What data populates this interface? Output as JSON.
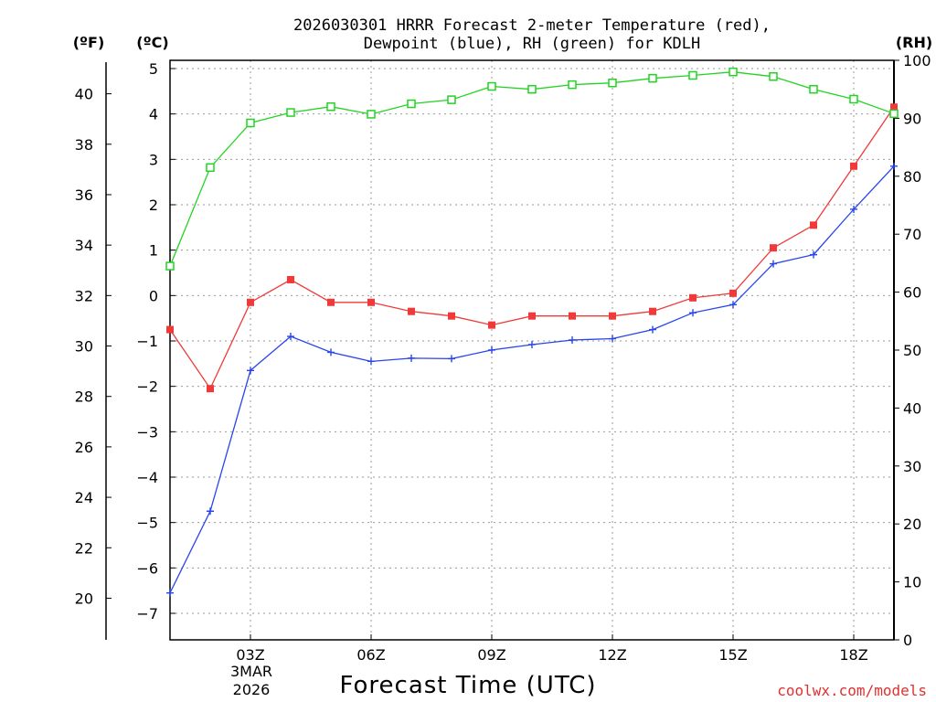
{
  "chart_data": {
    "type": "line",
    "title": [
      "2026030301 HRRR Forecast 2-meter Temperature (red),",
      "Dewpoint (blue), RH (green) for KDLH"
    ],
    "xlabel": "Forecast Time (UTC)",
    "date_label": [
      "3MAR",
      "2026"
    ],
    "credit": "coolwx.com/models",
    "units": {
      "fahrenheit": "(ºF)",
      "celsius": "(ºC)",
      "rh": "(RH)"
    },
    "x_hours": [
      1,
      2,
      3,
      4,
      5,
      6,
      7,
      8,
      9,
      10,
      11,
      12,
      13,
      14,
      15,
      16,
      17,
      18,
      19
    ],
    "x_range": [
      1,
      19
    ],
    "x_ticks": [
      {
        "hour": 3,
        "label": "03Z"
      },
      {
        "hour": 6,
        "label": "06Z"
      },
      {
        "hour": 9,
        "label": "09Z"
      },
      {
        "hour": 12,
        "label": "12Z"
      },
      {
        "hour": 15,
        "label": "15Z"
      },
      {
        "hour": 18,
        "label": "18Z"
      }
    ],
    "celsius_range": [
      -7.5,
      5.2
    ],
    "celsius_ticks": [
      "5",
      "4",
      "3",
      "2",
      "1",
      "0",
      "−1",
      "−2",
      "−3",
      "−4",
      "−5",
      "−6",
      "−7"
    ],
    "fahrenheit_ticks": [
      "40",
      "38",
      "36",
      "34",
      "32",
      "30",
      "28",
      "26",
      "24",
      "22",
      "20"
    ],
    "rh_range": [
      0,
      100
    ],
    "rh_ticks": [
      "100",
      "90",
      "80",
      "70",
      "60",
      "50",
      "40",
      "30",
      "20",
      "10",
      "0"
    ],
    "series": [
      {
        "name": "Temperature",
        "axis": "celsius",
        "color": "#f03a3a",
        "marker": "filled-square",
        "values": [
          -0.75,
          -2.05,
          -0.15,
          0.35,
          -0.15,
          -0.15,
          -0.35,
          -0.45,
          -0.65,
          -0.45,
          -0.45,
          -0.45,
          -0.35,
          -0.05,
          0.05,
          1.05,
          1.55,
          2.85,
          4.15
        ]
      },
      {
        "name": "Dewpoint",
        "axis": "celsius",
        "color": "#2844ee",
        "marker": "plus",
        "values": [
          -6.55,
          -4.75,
          -1.65,
          -0.9,
          -1.25,
          -1.45,
          -1.38,
          -1.39,
          -1.2,
          -1.08,
          -0.98,
          -0.95,
          -0.75,
          -0.38,
          -0.2,
          0.7,
          0.9,
          1.9,
          2.85
        ]
      },
      {
        "name": "RH",
        "axis": "rh",
        "color": "#22d422",
        "marker": "open-square",
        "values": [
          64.5,
          81.5,
          89.2,
          91.0,
          92.0,
          90.7,
          92.5,
          93.2,
          95.5,
          95.0,
          95.8,
          96.1,
          96.9,
          97.4,
          98.0,
          97.2,
          95.0,
          93.3,
          90.8
        ]
      }
    ]
  }
}
